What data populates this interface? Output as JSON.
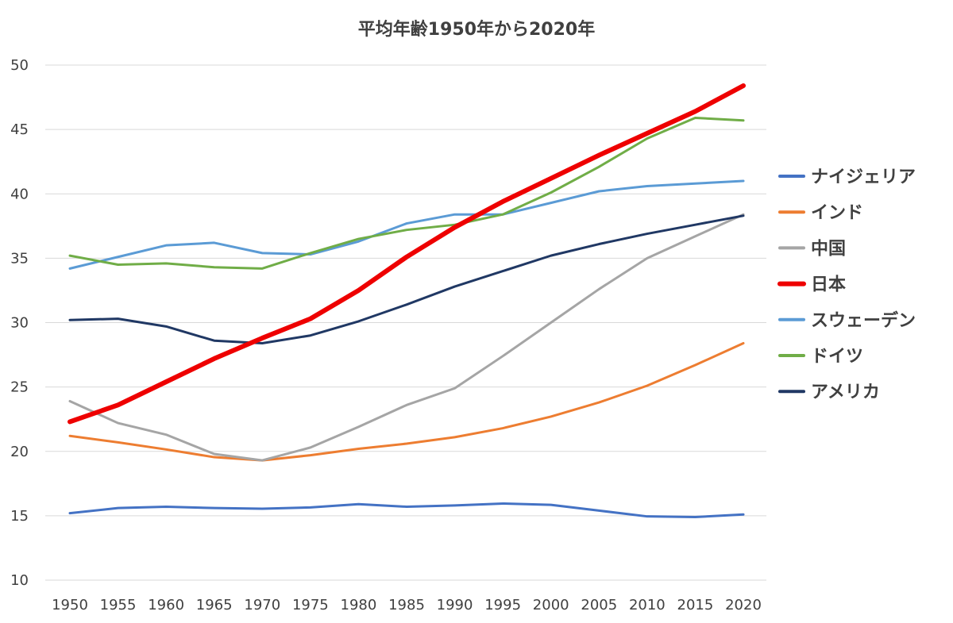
{
  "chart_data": {
    "type": "line",
    "title": "平均年齢1950年から2020年",
    "xlabel": "",
    "ylabel": "",
    "x": [
      1950,
      1955,
      1960,
      1965,
      1970,
      1975,
      1980,
      1985,
      1990,
      1995,
      2000,
      2005,
      2010,
      2015,
      2020
    ],
    "ylim": [
      10,
      50
    ],
    "yticks": [
      10,
      15,
      20,
      25,
      30,
      35,
      40,
      45,
      50
    ],
    "grid": true,
    "legend": "right",
    "series": [
      {
        "name": "ナイジェリア",
        "color": "#4472c4",
        "width": 3,
        "values": [
          15.2,
          15.6,
          15.7,
          15.6,
          15.55,
          15.65,
          15.9,
          15.7,
          15.8,
          15.95,
          15.85,
          15.4,
          14.95,
          14.9,
          15.1
        ]
      },
      {
        "name": "インド",
        "color": "#ed7d31",
        "width": 3,
        "values": [
          21.2,
          20.7,
          20.15,
          19.55,
          19.3,
          19.7,
          20.2,
          20.6,
          21.1,
          21.8,
          22.7,
          23.8,
          25.1,
          26.7,
          28.4
        ]
      },
      {
        "name": "中国",
        "color": "#a5a5a5",
        "width": 3,
        "values": [
          23.9,
          22.2,
          21.3,
          19.8,
          19.3,
          20.3,
          21.9,
          23.6,
          24.9,
          27.4,
          30.0,
          32.6,
          35.0,
          36.7,
          38.4
        ]
      },
      {
        "name": "日本",
        "color": "#ee0000",
        "width": 6,
        "values": [
          22.3,
          23.6,
          25.4,
          27.2,
          28.8,
          30.3,
          32.5,
          35.1,
          37.4,
          39.4,
          41.2,
          43.0,
          44.7,
          46.4,
          48.4
        ]
      },
      {
        "name": "スウェーデン",
        "color": "#5b9bd5",
        "width": 3,
        "values": [
          34.2,
          35.1,
          36.0,
          36.2,
          35.4,
          35.3,
          36.3,
          37.7,
          38.4,
          38.4,
          39.3,
          40.2,
          40.6,
          40.8,
          41.0
        ]
      },
      {
        "name": "ドイツ",
        "color": "#70ad47",
        "width": 3,
        "values": [
          35.2,
          34.5,
          34.6,
          34.3,
          34.2,
          35.4,
          36.5,
          37.2,
          37.6,
          38.4,
          40.1,
          42.1,
          44.3,
          45.9,
          45.7
        ]
      },
      {
        "name": "アメリカ",
        "color": "#203864",
        "width": 3,
        "values": [
          30.2,
          30.3,
          29.7,
          28.6,
          28.4,
          29.0,
          30.1,
          31.4,
          32.8,
          34.0,
          35.2,
          36.1,
          36.9,
          37.6,
          38.3
        ]
      }
    ]
  }
}
